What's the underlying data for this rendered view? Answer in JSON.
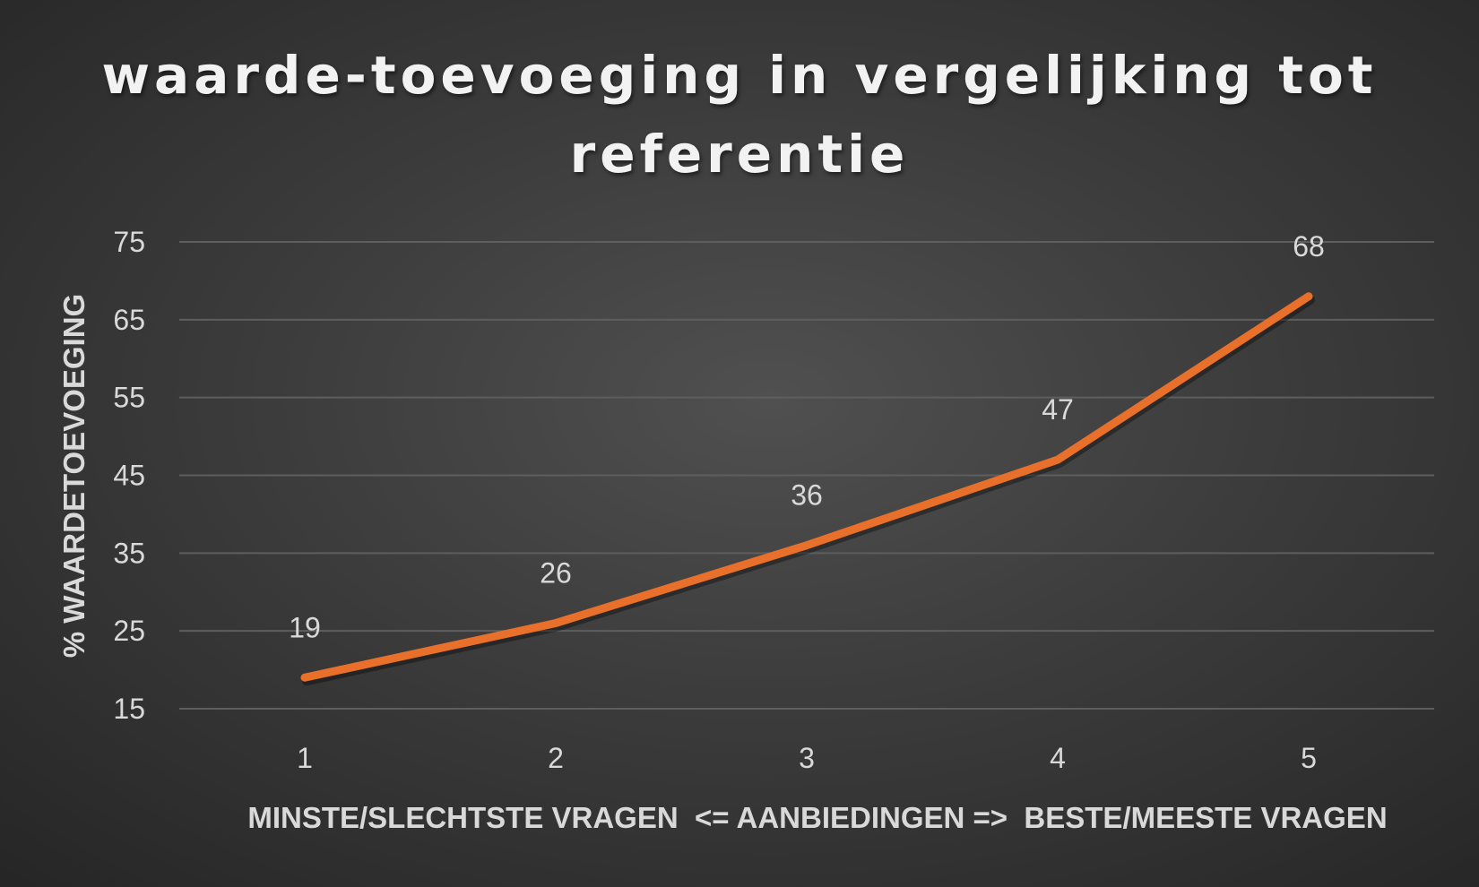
{
  "chart_data": {
    "type": "line",
    "title_lines": [
      "waarde-toevoeging in vergelijking tot",
      "referentie"
    ],
    "xlabel": "MINSTE/SLECHTSTE VRAGEN  <= AANBIEDINGEN =>  BESTE/MEESTE VRAGEN",
    "ylabel": "% WAARDETOEVOEGING",
    "categories": [
      "1",
      "2",
      "3",
      "4",
      "5"
    ],
    "values": [
      19,
      26,
      36,
      47,
      68
    ],
    "data_labels": [
      "19",
      "26",
      "36",
      "47",
      "68"
    ],
    "yticks": [
      "15",
      "25",
      "35",
      "45",
      "55",
      "65",
      "75"
    ],
    "ylim": [
      15,
      75
    ],
    "grid": true,
    "legend": "none",
    "line_color": "#e8702a",
    "background_color": "#3a3a3a"
  }
}
